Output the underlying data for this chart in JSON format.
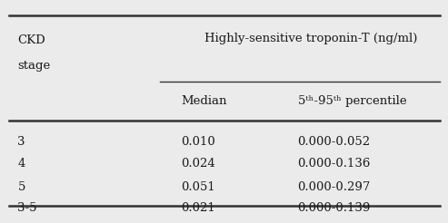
{
  "col_header_main": "Highly-sensitive troponin-T (ng/ml)",
  "col_header_sub1": "Median",
  "col_header_sub2": "5ᵗʰ-95ᵗʰ percentile",
  "row_header_label1": "CKD",
  "row_header_label2": "stage",
  "rows": [
    {
      "stage": "3",
      "median": "0.010",
      "percentile": "0.000-0.052"
    },
    {
      "stage": "4",
      "median": "0.024",
      "percentile": "0.000-0.136"
    },
    {
      "stage": "5",
      "median": "0.051",
      "percentile": "0.000-0.297"
    },
    {
      "stage": "3-5",
      "median": "0.021",
      "percentile": "0.000-0.139"
    }
  ],
  "bg_color": "#ebebeb",
  "text_color": "#1a1a1a",
  "font_size": 9.5,
  "line_color": "#333333"
}
